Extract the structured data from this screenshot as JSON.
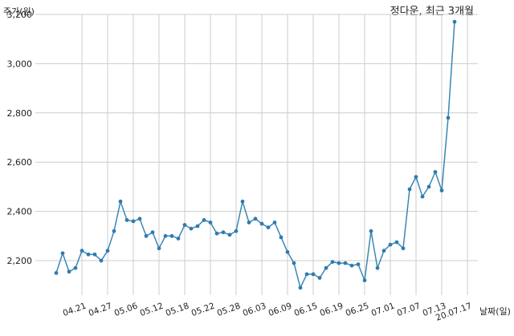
{
  "chart_data": {
    "type": "line",
    "title": "정다운, 최근 3개월",
    "ylabel": "주가(원)",
    "xlabel": "날짜(일)",
    "ylim": [
      2060,
      3200
    ],
    "yticks": [
      2200,
      2400,
      2600,
      2800,
      3000,
      3200
    ],
    "ytick_labels": [
      "2,200",
      "2,400",
      "2,600",
      "2,800",
      "3,000",
      "3,200"
    ],
    "xticks": [
      "04.21",
      "04.27",
      "05.06",
      "05.12",
      "05.18",
      "05.22",
      "05.28",
      "06.03",
      "06.09",
      "06.15",
      "06.19",
      "06.25",
      "07.01",
      "07.07",
      "07.13",
      "20.07.17"
    ],
    "xtick_index": [
      4,
      8,
      12,
      16,
      20,
      24,
      28,
      32,
      36,
      40,
      44,
      48,
      52,
      56,
      60,
      64
    ],
    "grid": true,
    "color": "#3a87b5",
    "series": [
      {
        "values": [
          2150,
          2230,
          2155,
          2170,
          2240,
          2225,
          2225,
          2200,
          2240,
          2320,
          2440,
          2365,
          2360,
          2370,
          2300,
          2315,
          2250,
          2300,
          2300,
          2290,
          2345,
          2330,
          2340,
          2365,
          2355,
          2310,
          2315,
          2305,
          2320,
          2440,
          2355,
          2370,
          2350,
          2335,
          2355,
          2295,
          2235,
          2190,
          2090,
          2145,
          2145,
          2130,
          2170,
          2195,
          2190,
          2190,
          2180,
          2185,
          2120,
          2320,
          2170,
          2240,
          2265,
          2275,
          2250,
          2490,
          2540,
          2460,
          2500,
          2560,
          2485,
          2780,
          3170
        ]
      }
    ]
  }
}
